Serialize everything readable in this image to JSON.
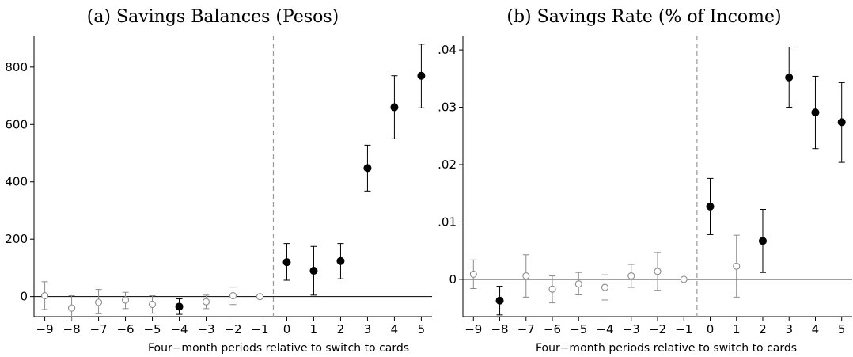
{
  "chart_data": [
    {
      "type": "scatter",
      "title": "(a) Savings Balances (Pesos)",
      "xlabel": "Four−month periods relative to switch to cards",
      "ylabel": "",
      "xlim": [
        -9.4,
        5.4
      ],
      "ylim": [
        -70,
        910
      ],
      "x_ticks": [
        -9,
        -8,
        -7,
        -6,
        -5,
        -4,
        -3,
        -2,
        -1,
        0,
        1,
        2,
        3,
        4,
        5
      ],
      "x_tick_labels": [
        "−9",
        "−8",
        "−7",
        "−6",
        "−5",
        "−4",
        "−3",
        "−2",
        "−1",
        "0",
        "1",
        "2",
        "3",
        "4",
        "5"
      ],
      "y_ticks": [
        0,
        200,
        400,
        600,
        800
      ],
      "y_tick_labels": [
        "0",
        "200",
        "400",
        "600",
        "800"
      ],
      "reference_vline_x": -0.5,
      "reference_hline_y": 0,
      "points": [
        {
          "x": -9,
          "y": 3,
          "lo": -45,
          "hi": 52,
          "filled": false
        },
        {
          "x": -8,
          "y": -40,
          "lo": -85,
          "hi": 3,
          "filled": false
        },
        {
          "x": -7,
          "y": -20,
          "lo": -60,
          "hi": 25,
          "filled": false
        },
        {
          "x": -6,
          "y": -12,
          "lo": -42,
          "hi": 15,
          "filled": false
        },
        {
          "x": -5,
          "y": -27,
          "lo": -58,
          "hi": 3,
          "filled": false
        },
        {
          "x": -4,
          "y": -35,
          "lo": -62,
          "hi": -8,
          "filled": true
        },
        {
          "x": -3,
          "y": -18,
          "lo": -42,
          "hi": 5,
          "filled": false
        },
        {
          "x": -2,
          "y": 3,
          "lo": -28,
          "hi": 33,
          "filled": false
        },
        {
          "x": -1,
          "y": 0,
          "lo": 0,
          "hi": 0,
          "filled": false
        },
        {
          "x": 0,
          "y": 120,
          "lo": 57,
          "hi": 185,
          "filled": true
        },
        {
          "x": 1,
          "y": 90,
          "lo": 5,
          "hi": 175,
          "filled": true
        },
        {
          "x": 2,
          "y": 124,
          "lo": 62,
          "hi": 185,
          "filled": true
        },
        {
          "x": 3,
          "y": 448,
          "lo": 368,
          "hi": 528,
          "filled": true
        },
        {
          "x": 4,
          "y": 660,
          "lo": 550,
          "hi": 770,
          "filled": true
        },
        {
          "x": 5,
          "y": 770,
          "lo": 658,
          "hi": 880,
          "filled": true
        }
      ]
    },
    {
      "type": "scatter",
      "title": "(b) Savings Rate (% of Income)",
      "xlabel": "Four−month periods relative to switch to cards",
      "ylabel": "",
      "xlim": [
        -9.4,
        5.4
      ],
      "ylim": [
        -0.0065,
        0.0425
      ],
      "x_ticks": [
        -9,
        -8,
        -7,
        -6,
        -5,
        -4,
        -3,
        -2,
        -1,
        0,
        1,
        2,
        3,
        4,
        5
      ],
      "x_tick_labels": [
        "−9",
        "−8",
        "−7",
        "−6",
        "−5",
        "−4",
        "−3",
        "−2",
        "−1",
        "0",
        "1",
        "2",
        "3",
        "4",
        "5"
      ],
      "y_ticks": [
        0,
        0.01,
        0.02,
        0.03,
        0.04
      ],
      "y_tick_labels": [
        "0",
        ".01",
        ".02",
        ".03",
        ".04"
      ],
      "reference_vline_x": -0.5,
      "reference_hline_y": 0,
      "points": [
        {
          "x": -9,
          "y": 0.0009,
          "lo": -0.0016,
          "hi": 0.0034,
          "filled": false
        },
        {
          "x": -8,
          "y": -0.0037,
          "lo": -0.0062,
          "hi": -0.0012,
          "filled": true
        },
        {
          "x": -7,
          "y": 0.0006,
          "lo": -0.0031,
          "hi": 0.0043,
          "filled": false
        },
        {
          "x": -6,
          "y": -0.0017,
          "lo": -0.0041,
          "hi": 0.0006,
          "filled": false
        },
        {
          "x": -5,
          "y": -0.0008,
          "lo": -0.0027,
          "hi": 0.0012,
          "filled": false
        },
        {
          "x": -4,
          "y": -0.0014,
          "lo": -0.0036,
          "hi": 0.0008,
          "filled": false
        },
        {
          "x": -3,
          "y": 0.0006,
          "lo": -0.0014,
          "hi": 0.0026,
          "filled": false
        },
        {
          "x": -2,
          "y": 0.0014,
          "lo": -0.0019,
          "hi": 0.0047,
          "filled": false
        },
        {
          "x": -1,
          "y": 0,
          "lo": 0,
          "hi": 0,
          "filled": false
        },
        {
          "x": 0,
          "y": 0.0127,
          "lo": 0.0078,
          "hi": 0.0176,
          "filled": true
        },
        {
          "x": 1,
          "y": 0.0023,
          "lo": -0.0031,
          "hi": 0.0077,
          "filled": false
        },
        {
          "x": 2,
          "y": 0.0067,
          "lo": 0.0012,
          "hi": 0.0122,
          "filled": true
        },
        {
          "x": 3,
          "y": 0.0352,
          "lo": 0.03,
          "hi": 0.0405,
          "filled": true
        },
        {
          "x": 4,
          "y": 0.0291,
          "lo": 0.0228,
          "hi": 0.0354,
          "filled": true
        },
        {
          "x": 5,
          "y": 0.0274,
          "lo": 0.0204,
          "hi": 0.0343,
          "filled": true
        }
      ]
    }
  ]
}
